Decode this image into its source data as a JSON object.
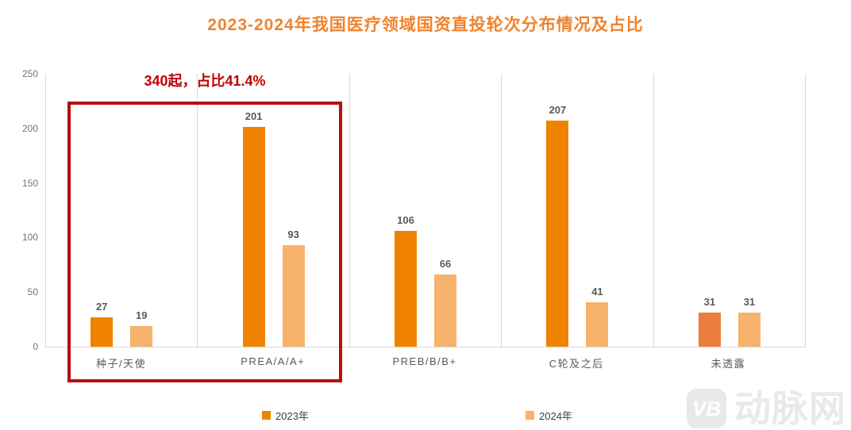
{
  "chart_data": {
    "type": "bar",
    "title": "2023-2024年我国医疗领域国资直投轮次分布情况及占比",
    "categories": [
      "种子/天使",
      "PREA/A/A+",
      "PREB/B/B+",
      "C轮及之后",
      "未透露"
    ],
    "series": [
      {
        "name": "2023年",
        "color": "#EF8200",
        "bar_colors": [
          "#EF8200",
          "#EF8200",
          "#EF8200",
          "#EF8200",
          "#EC7D3C"
        ],
        "values": [
          27,
          201,
          106,
          207,
          31
        ]
      },
      {
        "name": "2024年",
        "color": "#F7B26D",
        "values": [
          19,
          93,
          66,
          41,
          31
        ]
      }
    ],
    "xlabel": "",
    "ylabel": "",
    "ylim": [
      0,
      250
    ],
    "yticks": [
      0,
      50,
      100,
      150,
      200,
      250
    ],
    "grid": "vertical category separators, no horizontal gridlines",
    "legend_position": "bottom",
    "annotation": {
      "text": "340起，占比41.4%",
      "box_categories": [
        "种子/天使",
        "PREA/A/A+"
      ]
    }
  },
  "colors": {
    "title": "#F0832D",
    "annotation_box": "#B80E0E",
    "annotation_text": "#C00000",
    "axis_line": "#D9D9D9",
    "bar_value_label": "#595959",
    "watermark_gray": "#E9E9EB"
  },
  "watermark": {
    "icon_text": "VB",
    "text": "动脉网"
  }
}
